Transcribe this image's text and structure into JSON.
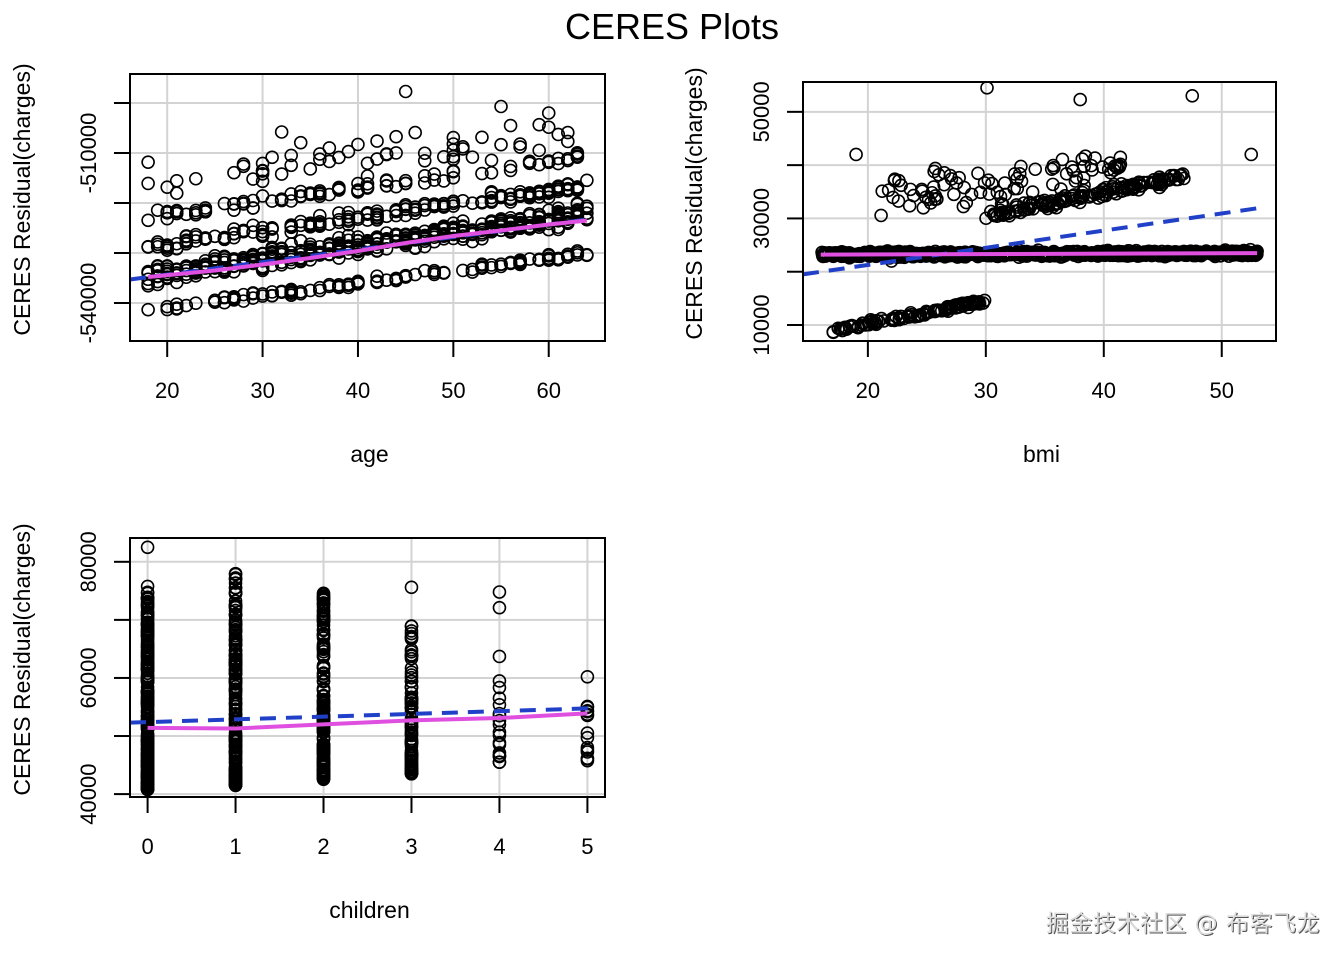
{
  "title": "CERES Plots",
  "watermark": "掘金技术社区 @ 布客飞龙",
  "colors": {
    "points": "#000000",
    "linear_fit": "#2140c8",
    "smooth_fit": "#e050e0",
    "grid": "#d3d3d3",
    "frame": "#000000"
  },
  "chart_data": [
    {
      "type": "scatter",
      "panel": "top-left",
      "title": "",
      "xlabel": "age",
      "ylabel": "CERES Residual(charges)",
      "xlim": [
        16.1,
        65.9
      ],
      "ylim": [
        -547600,
        -494200
      ],
      "xticks": [
        20,
        30,
        40,
        50,
        60
      ],
      "xtick_labels": [
        "20",
        "30",
        "40",
        "50",
        "60"
      ],
      "yticks": [
        -500000,
        -510000,
        -520000,
        -530000,
        -540000
      ],
      "ytick_labels": [
        "",
        "-510000",
        "",
        "",
        "-540000"
      ],
      "grid": true,
      "point_bands": [
        {
          "x_range": [
            18,
            64
          ],
          "y_start": -534500,
          "y_end": -522000,
          "spread": 2800,
          "count": 420
        },
        {
          "x_range": [
            18,
            64
          ],
          "y_start": -529000,
          "y_end": -516500,
          "spread": 1800,
          "count": 170
        },
        {
          "x_range": [
            18,
            64
          ],
          "y_start": -541500,
          "y_end": -530000,
          "spread": 1000,
          "count": 120
        },
        {
          "x_range": [
            18,
            64
          ],
          "y_start": -523000,
          "y_end": -510500,
          "spread": 1500,
          "count": 90
        },
        {
          "x_range": [
            18,
            64
          ],
          "y_start": -515000,
          "y_end": -506000,
          "spread": 5000,
          "count": 60
        }
      ],
      "outliers": [
        [
          45,
          -497700
        ],
        [
          55,
          -500700
        ],
        [
          32,
          -505800
        ],
        [
          60,
          -502000
        ]
      ],
      "linear_fit": {
        "x": [
          16.1,
          64
        ],
        "y": [
          -535300,
          -523300
        ]
      },
      "smooth_fit": {
        "x": [
          18,
          25,
          30,
          35,
          40,
          45,
          50,
          55,
          60,
          64
        ],
        "y": [
          -534800,
          -533500,
          -532300,
          -531000,
          -529600,
          -528000,
          -526600,
          -525500,
          -524300,
          -523500
        ]
      }
    },
    {
      "type": "scatter",
      "panel": "top-right",
      "title": "",
      "xlabel": "bmi",
      "ylabel": "CERES Residual(charges)",
      "xlim": [
        14.5,
        54.6
      ],
      "ylim": [
        7000,
        55600
      ],
      "xticks": [
        20,
        30,
        40,
        50
      ],
      "xtick_labels": [
        "20",
        "30",
        "40",
        "50"
      ],
      "yticks": [
        10000,
        20000,
        30000,
        40000,
        50000
      ],
      "ytick_labels": [
        "10000",
        "",
        "30000",
        "",
        "50000"
      ],
      "grid": true,
      "point_bands": [
        {
          "x_range": [
            16,
            53
          ],
          "y_start": 23200,
          "y_end": 23500,
          "spread": 700,
          "count": 800
        },
        {
          "x_range": [
            30,
            47
          ],
          "y_start": 30500,
          "y_end": 38000,
          "spread": 1300,
          "count": 150
        },
        {
          "x_range": [
            17,
            30
          ],
          "y_start": 9000,
          "y_end": 14500,
          "spread": 700,
          "count": 110
        },
        {
          "x_range": [
            21,
            42
          ],
          "y_start": 34000,
          "y_end": 40000,
          "spread": 5500,
          "count": 90
        }
      ],
      "outliers": [
        [
          30.1,
          54500
        ],
        [
          38,
          52300
        ],
        [
          47.5,
          53000
        ],
        [
          52.5,
          42000
        ],
        [
          19,
          42000
        ],
        [
          22,
          22000
        ]
      ],
      "linear_fit": {
        "x": [
          14.5,
          53
        ],
        "y": [
          19500,
          31900
        ]
      },
      "smooth_fit": {
        "x": [
          16,
          53
        ],
        "y": [
          23200,
          23500
        ]
      }
    },
    {
      "type": "scatter",
      "panel": "bottom-left",
      "title": "",
      "xlabel": "children",
      "ylabel": "CERES Residual(charges)",
      "xlim": [
        -0.2,
        5.2
      ],
      "ylim": [
        39500,
        84100
      ],
      "xticks": [
        0,
        1,
        2,
        3,
        4,
        5
      ],
      "xtick_labels": [
        "0",
        "1",
        "2",
        "3",
        "4",
        "5"
      ],
      "yticks": [
        40000,
        50000,
        60000,
        70000,
        80000
      ],
      "ytick_labels": [
        "40000",
        "",
        "60000",
        "",
        "80000"
      ],
      "grid": true,
      "columns": [
        {
          "x": 0,
          "y_min": 40800,
          "y_max": 76000,
          "count": 300,
          "extra": [
            82500
          ]
        },
        {
          "x": 1,
          "y_min": 41500,
          "y_max": 78200,
          "count": 220,
          "extra": []
        },
        {
          "x": 2,
          "y_min": 42500,
          "y_max": 75000,
          "count": 160,
          "extra": []
        },
        {
          "x": 3,
          "y_min": 43500,
          "y_max": 69000,
          "count": 100,
          "extra": [
            75600
          ]
        },
        {
          "x": 4,
          "y_min": 44500,
          "y_max": 61000,
          "count": 18,
          "extra": [
            74800,
            72100,
            63700
          ]
        },
        {
          "x": 5,
          "y_min": 44300,
          "y_max": 55800,
          "count": 14,
          "extra": [
            60200
          ]
        }
      ],
      "linear_fit": {
        "x": [
          -0.2,
          5.1
        ],
        "y": [
          52300,
          54800
        ]
      },
      "smooth_fit": {
        "x": [
          0,
          1,
          2,
          3,
          4,
          5
        ],
        "y": [
          51400,
          51300,
          52000,
          52700,
          53100,
          53900
        ]
      }
    }
  ]
}
